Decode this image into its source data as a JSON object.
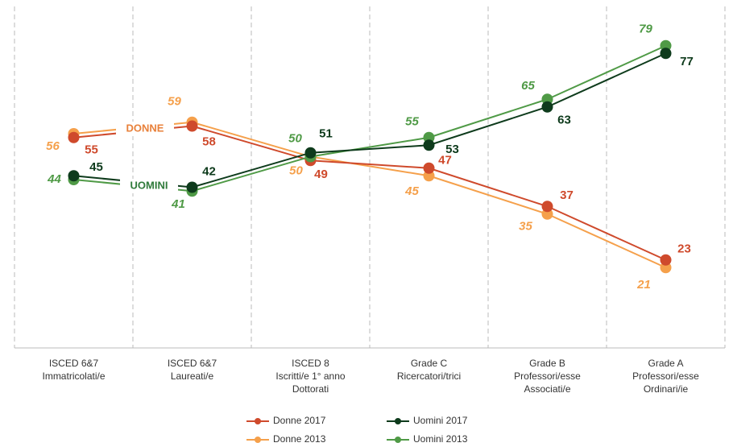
{
  "chart_data": {
    "type": "line",
    "categories": [
      [
        "ISCED 6&7",
        "Immatricolati/e"
      ],
      [
        "ISCED 6&7",
        "Laureati/e"
      ],
      [
        "ISCED 8",
        "Iscritti/e 1° anno",
        "Dottorati"
      ],
      [
        "Grade C",
        "Ricercatori/trici"
      ],
      [
        "Grade B",
        "Professori/esse",
        "Associati/e"
      ],
      [
        "Grade A",
        "Professori/esse",
        "Ordinari/ie"
      ]
    ],
    "series": [
      {
        "name": "Donne 2017",
        "color": "#cf4a2c",
        "values": [
          55,
          58,
          49,
          47,
          37,
          23
        ]
      },
      {
        "name": "Donne 2013",
        "color": "#f5a04b",
        "values": [
          56,
          59,
          50,
          45,
          35,
          21
        ]
      },
      {
        "name": "Uomini 2017",
        "color": "#0e3b1c",
        "values": [
          45,
          42,
          51,
          53,
          63,
          77
        ]
      },
      {
        "name": "Uomini 2013",
        "color": "#4f9a46",
        "values": [
          44,
          41,
          50,
          55,
          65,
          79
        ]
      }
    ],
    "annotations": [
      {
        "text": "DONNE",
        "color": "#e8803a"
      },
      {
        "text": "UOMINI",
        "color": "#2f7a3a"
      }
    ],
    "ylim": [
      0,
      80
    ]
  }
}
